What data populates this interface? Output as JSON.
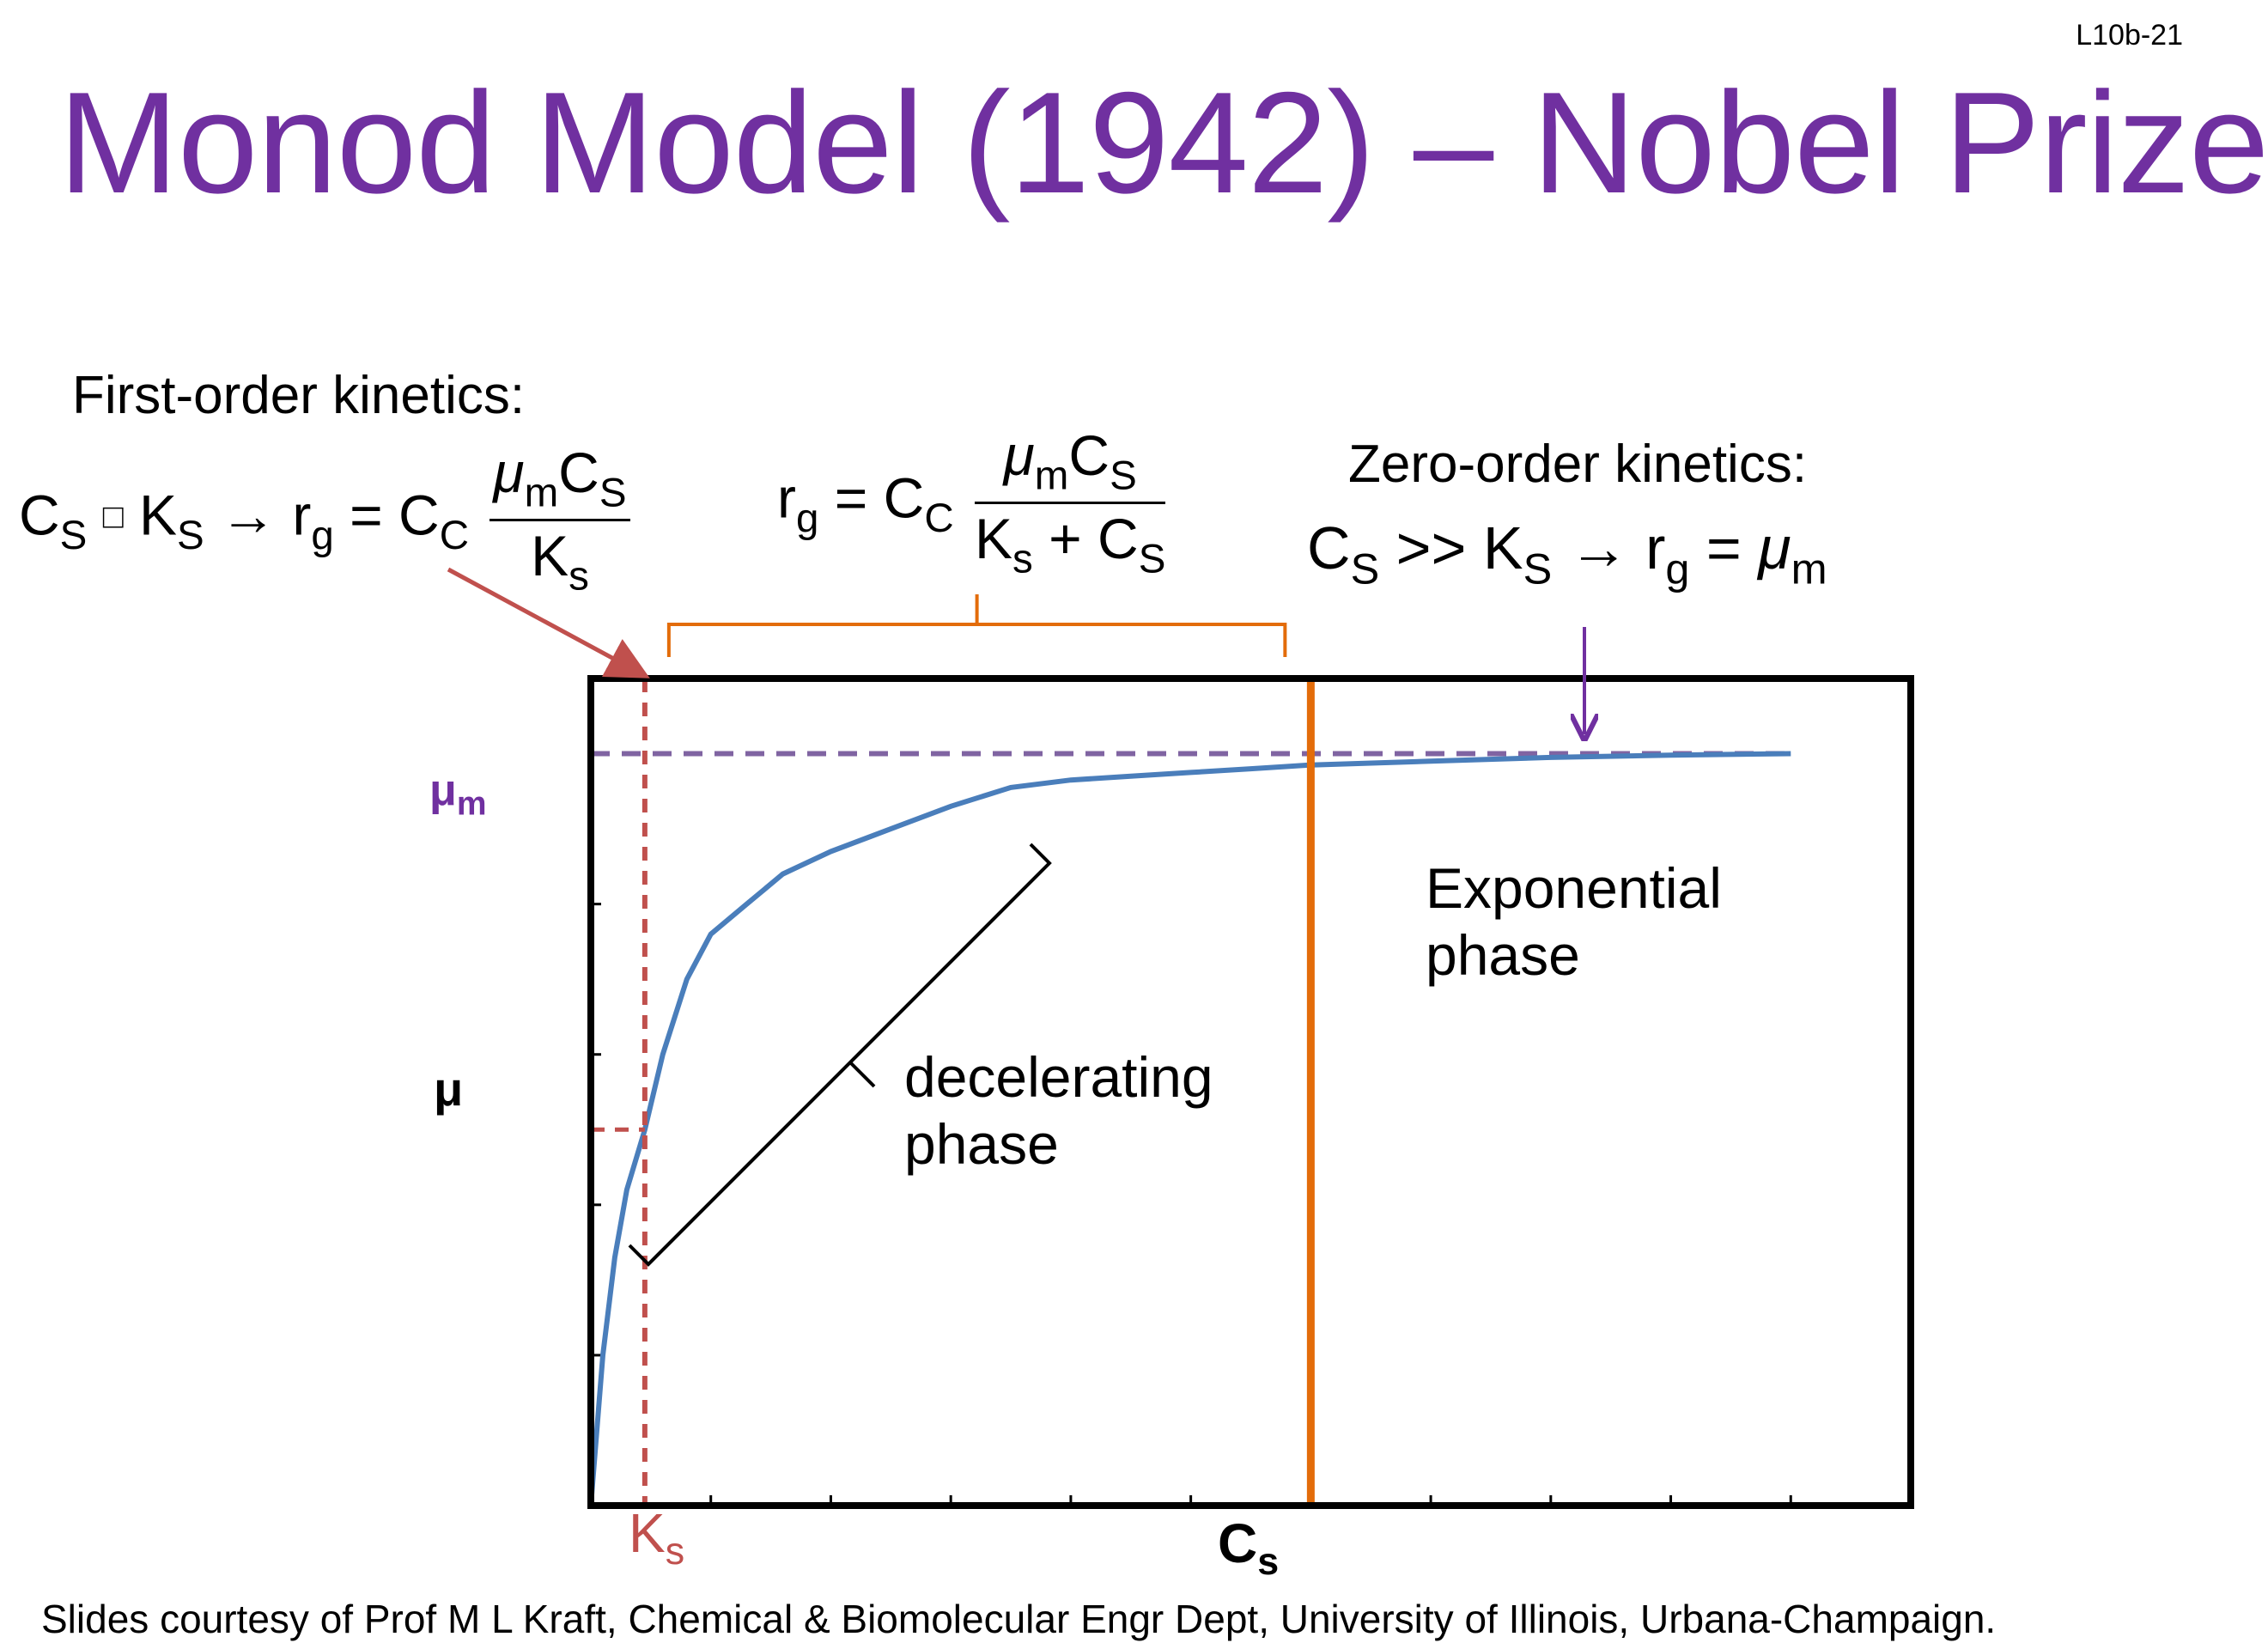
{
  "slide": {
    "number": "L10b-21",
    "title": "Monod Model (1942) – Nobel Prize",
    "first_order_label": "First-order kinetics:",
    "zero_order_label": "Zero-order kinetics:",
    "footer": "Slides courtesy of Prof M L Kraft, Chemical & Biomolecular Engr Dept, University of Illinois, Urbana-Champaign."
  },
  "equations": {
    "first_order": {
      "lhs_c": "C",
      "lhs_s": "S",
      "rel": "□",
      "ks_k": "K",
      "ks_s": "S",
      "arrow": "→",
      "r": "r",
      "g": "g",
      "eq": "=",
      "cc_c": "C",
      "cc_sub": "C",
      "num_mu": "μ",
      "num_m": "m",
      "num_c": "C",
      "num_s": "S",
      "den_k": "K",
      "den_s": "s"
    },
    "monod": {
      "r": "r",
      "g": "g",
      "eq": "=",
      "cc_c": "C",
      "cc_sub": "C",
      "num_mu": "μ",
      "num_m": "m",
      "num_c": "C",
      "num_s": "S",
      "den_k": "K",
      "den_ks": "s",
      "den_plus": "+",
      "den_c": "C",
      "den_cs": "S"
    },
    "zero_order": {
      "lhs_c": "C",
      "lhs_s": "S",
      "rel": ">>",
      "ks_k": "K",
      "ks_s": "S",
      "arrow": "→",
      "r": "r",
      "g": "g",
      "eq": "=",
      "mu": "μ",
      "m": "m"
    }
  },
  "chart_data": {
    "type": "line",
    "xlabel_main": "C",
    "xlabel_sub": "s",
    "ylabel": "μ",
    "mu_max_label_main": "μ",
    "mu_max_label_sub": "m",
    "ks_label_main": "K",
    "ks_label_sub": "s",
    "xlim": [
      0,
      1.1
    ],
    "ylim": [
      0,
      1.1
    ],
    "mu_max": 1.0,
    "Ks": 0.045,
    "zero_order_start_x": 0.6,
    "series": [
      {
        "x": [
          0,
          0.01,
          0.02,
          0.03,
          0.045,
          0.06,
          0.08,
          0.1,
          0.13,
          0.16,
          0.2,
          0.25,
          0.3,
          0.35,
          0.4,
          0.45,
          0.5,
          0.55,
          0.6,
          0.7,
          0.8,
          0.9,
          1.0
        ],
        "values": [
          0,
          0.2,
          0.33,
          0.42,
          0.5,
          0.6,
          0.7,
          0.76,
          0.8,
          0.84,
          0.87,
          0.9,
          0.93,
          0.955,
          0.965,
          0.97,
          0.975,
          0.98,
          0.985,
          0.99,
          0.995,
          0.998,
          1.0
        ]
      }
    ],
    "annotations": {
      "exponential": [
        "Exponential",
        "phase"
      ],
      "decelerating": [
        "decelerating",
        "phase"
      ]
    },
    "colors": {
      "curve": "#4a7ebb",
      "mu_max_line": "#8064a2",
      "ks_line": "#c0504d",
      "zero_order_line": "#e36c0a",
      "bracket": "#e36c0a",
      "title": "#7030a0"
    }
  }
}
